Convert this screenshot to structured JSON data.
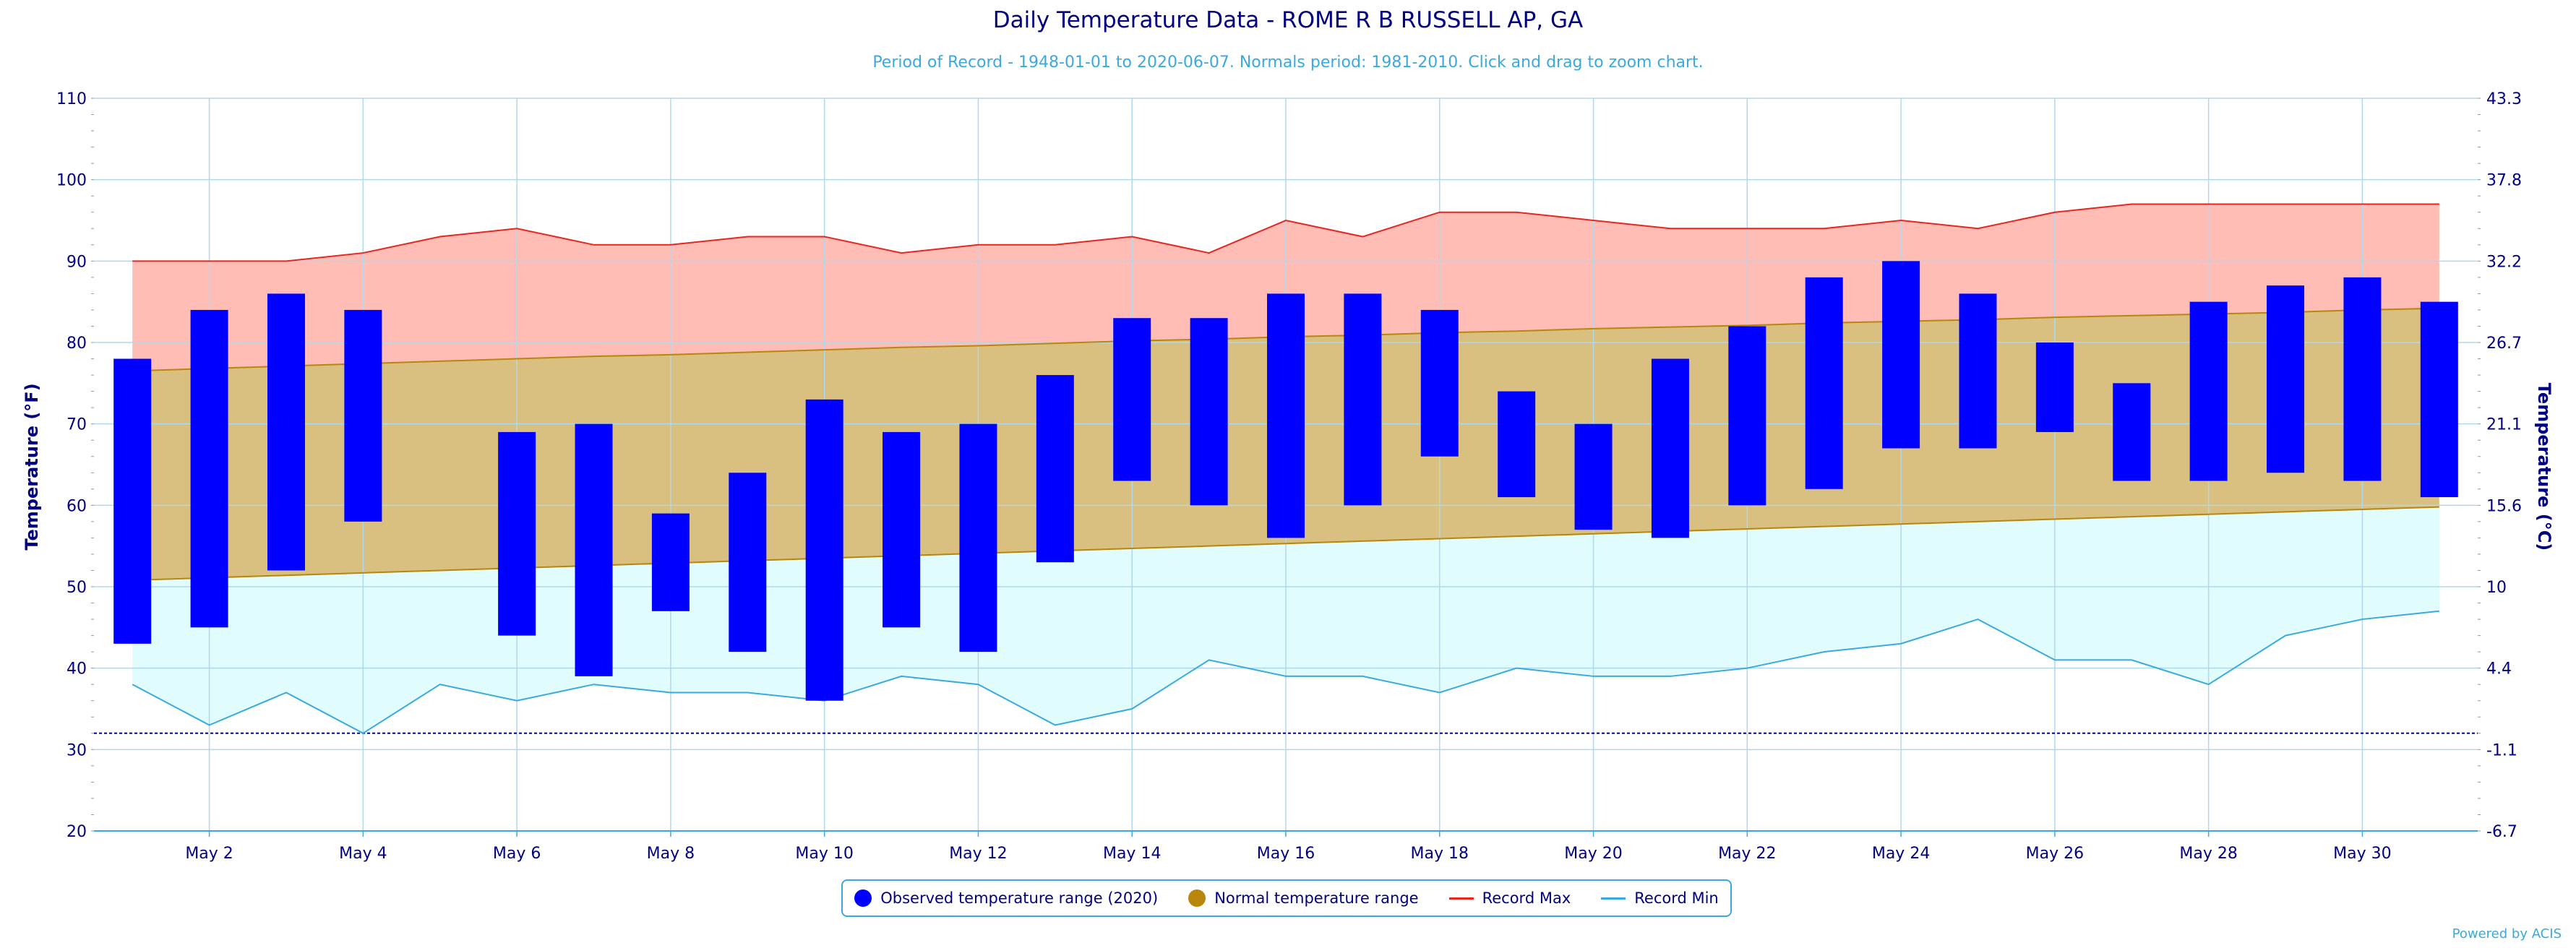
{
  "chart_data": {
    "type": "bar",
    "title": "Daily Temperature Data - ROME R B RUSSELL AP, GA",
    "subtitle": "Period of Record - 1948-01-01 to 2020-06-07. Normals period: 1981-2010. Click and drag to zoom chart.",
    "ylabel": "Temperature (°F)",
    "ylabel_right": "Temperature (°C)",
    "ylim": [
      20,
      110
    ],
    "y_ticks": [
      20,
      30,
      40,
      50,
      60,
      70,
      80,
      90,
      100,
      110
    ],
    "y_right_ticks": [
      "-6.7",
      "-1.1",
      "4.4",
      "10",
      "15.6",
      "21.1",
      "26.7",
      "32.2",
      "37.8",
      "43.3"
    ],
    "x_tick_labels": [
      "May 2",
      "May 4",
      "May 6",
      "May 8",
      "May 10",
      "May 12",
      "May 14",
      "May 16",
      "May 18",
      "May 20",
      "May 22",
      "May 24",
      "May 26",
      "May 28",
      "May 30"
    ],
    "days": [
      1,
      2,
      3,
      4,
      5,
      6,
      7,
      8,
      9,
      10,
      11,
      12,
      13,
      14,
      15,
      16,
      17,
      18,
      19,
      20,
      21,
      22,
      23,
      24,
      25,
      26,
      27,
      28,
      29,
      30,
      31
    ],
    "grid": true,
    "legend_position": "bottom-center",
    "freezing_line": 32,
    "series": [
      {
        "name": "Observed temperature range (2020)",
        "color": "#0000ff",
        "low": [
          43,
          45,
          52,
          58,
          null,
          44,
          39,
          47,
          42,
          36,
          45,
          42,
          53,
          63,
          60,
          56,
          60,
          66,
          61,
          57,
          56,
          60,
          62,
          67,
          67,
          69,
          63,
          63,
          64,
          63,
          61
        ],
        "high": [
          78,
          84,
          86,
          84,
          null,
          69,
          70,
          59,
          64,
          73,
          69,
          70,
          76,
          83,
          83,
          86,
          86,
          84,
          74,
          70,
          78,
          82,
          88,
          90,
          86,
          80,
          75,
          85,
          87,
          88,
          85
        ]
      },
      {
        "name": "Normal temperature range",
        "color": "#b8860b",
        "low": [
          50.8,
          51.1,
          51.4,
          51.7,
          52.0,
          52.3,
          52.6,
          52.9,
          53.2,
          53.5,
          53.8,
          54.1,
          54.4,
          54.7,
          55.0,
          55.3,
          55.6,
          55.9,
          56.2,
          56.5,
          56.8,
          57.1,
          57.4,
          57.7,
          58.0,
          58.3,
          58.6,
          58.9,
          59.2,
          59.5,
          59.8
        ],
        "high": [
          76.5,
          76.8,
          77.1,
          77.4,
          77.7,
          78.0,
          78.3,
          78.5,
          78.8,
          79.1,
          79.4,
          79.6,
          79.9,
          80.2,
          80.4,
          80.7,
          80.9,
          81.2,
          81.4,
          81.7,
          81.9,
          82.1,
          82.4,
          82.6,
          82.8,
          83.1,
          83.3,
          83.5,
          83.7,
          84.0,
          84.2
        ]
      },
      {
        "name": "Record Max",
        "color": "#e8261d",
        "values": [
          90,
          90,
          90,
          91,
          93,
          94,
          92,
          92,
          93,
          93,
          91,
          92,
          92,
          93,
          91,
          95,
          93,
          96,
          96,
          95,
          94,
          94,
          94,
          95,
          94,
          96,
          97,
          97,
          97,
          97,
          97
        ]
      },
      {
        "name": "Record Min",
        "color": "#3aa9dd",
        "values": [
          38,
          33,
          37,
          32,
          38,
          36,
          38,
          37,
          37,
          36,
          39,
          38,
          33,
          35,
          41,
          39,
          39,
          37,
          40,
          39,
          39,
          40,
          42,
          43,
          46,
          41,
          41,
          38,
          44,
          46,
          47
        ]
      }
    ]
  },
  "legend": {
    "observed": "Observed temperature range (2020)",
    "normal": "Normal temperature range",
    "record_max": "Record Max",
    "record_min": "Record Min"
  },
  "credit": "Powered by ACIS"
}
